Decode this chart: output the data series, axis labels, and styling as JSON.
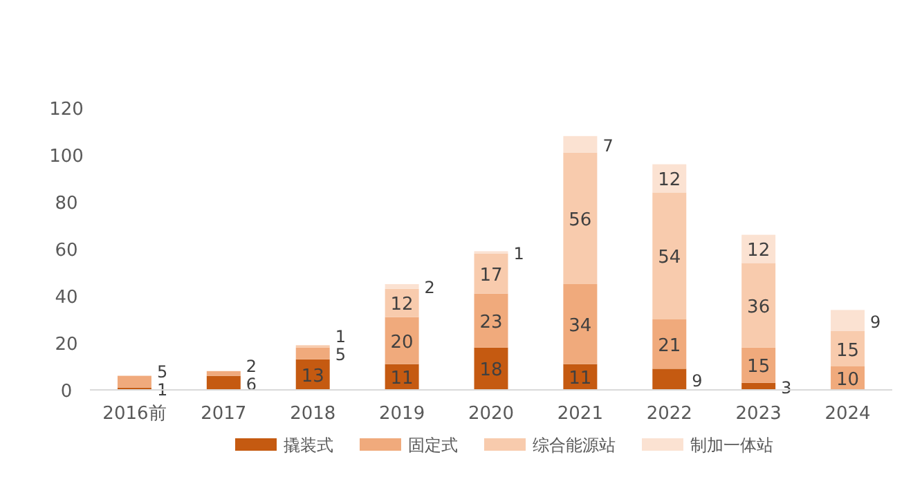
{
  "chart_data": {
    "type": "bar",
    "stacked": true,
    "categories": [
      "2016前",
      "2017",
      "2018",
      "2019",
      "2020",
      "2021",
      "2022",
      "2023",
      "2024"
    ],
    "series": [
      {
        "name": "撬装式",
        "color": "#c55a11",
        "values": [
          1,
          6,
          13,
          11,
          18,
          11,
          9,
          3,
          null
        ]
      },
      {
        "name": "固定式",
        "color": "#f0aa7c",
        "values": [
          5,
          2,
          5,
          20,
          23,
          34,
          21,
          15,
          10
        ]
      },
      {
        "name": "综合能源站",
        "color": "#f8cbad",
        "values": [
          null,
          null,
          1,
          12,
          17,
          56,
          54,
          36,
          15
        ]
      },
      {
        "name": "制加一体站",
        "color": "#fbe2d2",
        "values": [
          null,
          null,
          null,
          2,
          1,
          7,
          12,
          12,
          9
        ]
      }
    ],
    "ylim": [
      0,
      120
    ],
    "yticks": [
      0,
      20,
      40,
      60,
      80,
      100,
      120
    ],
    "data_labels": true,
    "legend": "bottom",
    "grid": false
  }
}
